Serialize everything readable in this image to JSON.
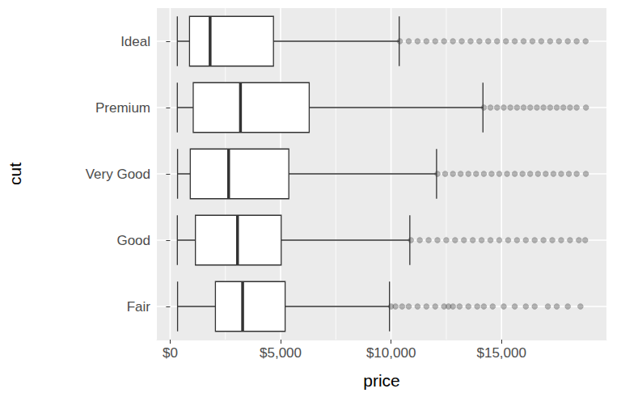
{
  "chart_data": {
    "type": "boxplot",
    "orientation": "horizontal",
    "x_label": "price",
    "y_label": "cut",
    "categories": [
      "Fair",
      "Good",
      "Very Good",
      "Premium",
      "Ideal"
    ],
    "values": [
      [
        337,
        2050,
        3282,
        5206,
        9930
      ],
      [
        327,
        1145,
        3050,
        5028,
        10850
      ],
      [
        336,
        912,
        2648,
        5373,
        12060
      ],
      [
        326,
        1046,
        3185,
        6296,
        14160
      ],
      [
        326,
        878,
        1810,
        4678,
        10370
      ]
    ],
    "outliers": [
      [
        10000,
        10200,
        10500,
        10800,
        11200,
        11600,
        12000,
        12400,
        12600,
        12800,
        13100,
        13500,
        13900,
        14200,
        14600,
        15100,
        15600,
        16100,
        16500,
        17100,
        17500,
        18000,
        18574
      ],
      [
        10900,
        11300,
        11700,
        12100,
        12500,
        12900,
        13300,
        13700,
        14100,
        14500,
        14900,
        15300,
        15700,
        16100,
        16500,
        16900,
        17300,
        17700,
        18100,
        18500,
        18788
      ],
      [
        12100,
        12450,
        12800,
        13150,
        13500,
        13850,
        14200,
        14550,
        14900,
        15250,
        15600,
        15950,
        16300,
        16650,
        17000,
        17350,
        17700,
        18050,
        18400,
        18818
      ],
      [
        14200,
        14500,
        14800,
        15100,
        15400,
        15700,
        16000,
        16300,
        16600,
        16900,
        17200,
        17500,
        17800,
        18100,
        18400,
        18823
      ],
      [
        10400,
        10800,
        11200,
        11600,
        12000,
        12400,
        12800,
        13200,
        13600,
        14000,
        14400,
        14800,
        15200,
        15600,
        16000,
        16400,
        16800,
        17200,
        17600,
        18000,
        18400,
        18806
      ]
    ],
    "color": "#333333",
    "xlim": [
      -600,
      19750
    ],
    "xticks": [
      {
        "value": 0,
        "label": "$0"
      },
      {
        "value": 5000,
        "label": "$5,000"
      },
      {
        "value": 10000,
        "label": "$10,000"
      },
      {
        "value": 15000,
        "label": "$15,000"
      }
    ],
    "grid": true
  }
}
